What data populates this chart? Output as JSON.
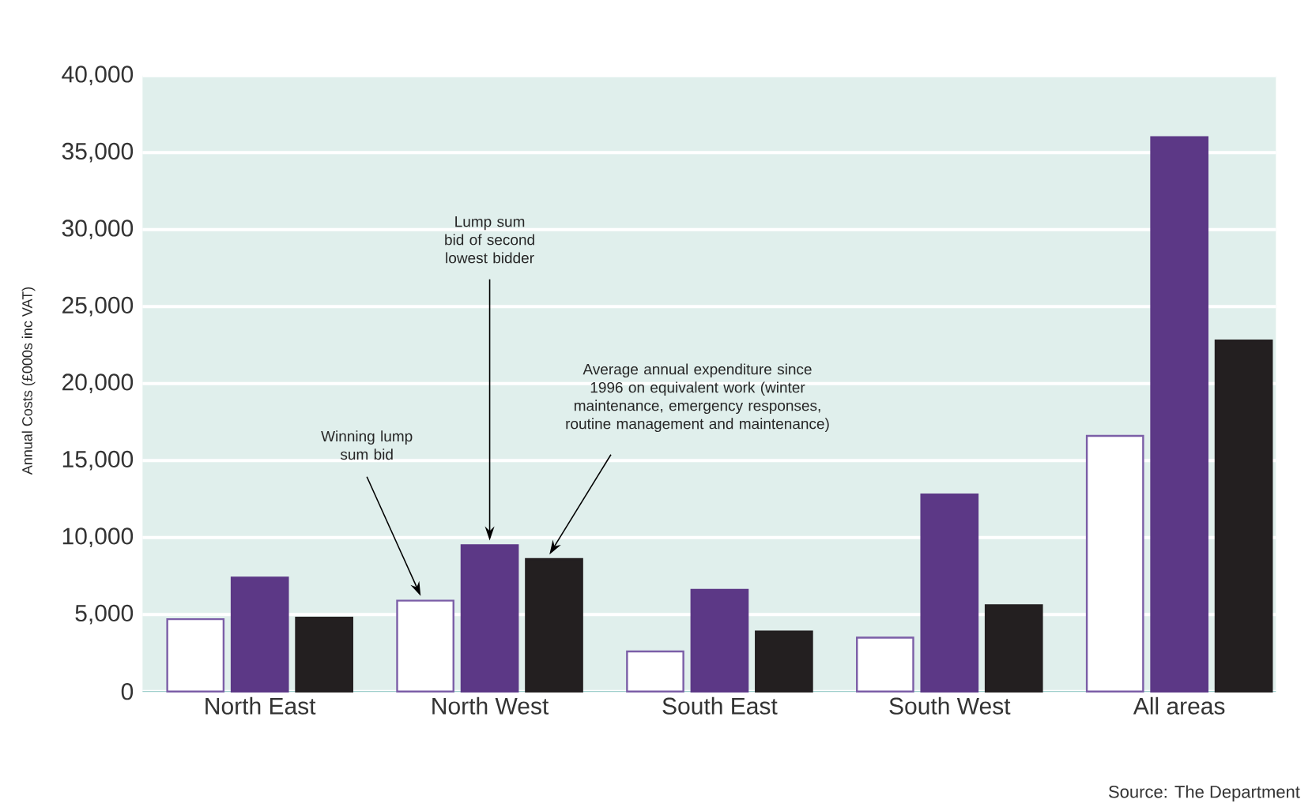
{
  "chart_data": {
    "type": "bar",
    "ylabel": "Annual Costs (£000s inc VAT)",
    "categories": [
      "North East",
      "North West",
      "South East",
      "South West",
      "All areas"
    ],
    "series": [
      {
        "color": "#ffffff",
        "values": [
          4700,
          5900,
          2600,
          3500,
          16600
        ]
      },
      {
        "color": "#5c3886",
        "values": [
          7400,
          9500,
          6600,
          12800,
          36000
        ]
      },
      {
        "color": "#231f20",
        "values": [
          4800,
          8600,
          3900,
          5600,
          22800
        ]
      }
    ],
    "ylim": [
      0,
      40000
    ],
    "yticks": [
      0,
      {
        "value": 5000,
        "label": "5,000"
      },
      {
        "value": 10000,
        "label": "10,000"
      },
      {
        "value": 15000,
        "label": "15,000"
      },
      {
        "value": 20000,
        "label": "20,000"
      },
      {
        "value": 25000,
        "label": "25,000"
      },
      {
        "value": 30000,
        "label": "30,000"
      },
      {
        "value": 35000,
        "label": "35,000"
      },
      {
        "value": 40000,
        "label": "40,000"
      }
    ],
    "grid": "y",
    "annotations": [
      "Winning lump sum bid",
      "Lump sum bid of second lowest bidder",
      "Average annual expenditure since 1996 on equivalent work (winter maintenance, emergency responses, routine management and maintenance)",
      "Source: The Department"
    ]
  }
}
